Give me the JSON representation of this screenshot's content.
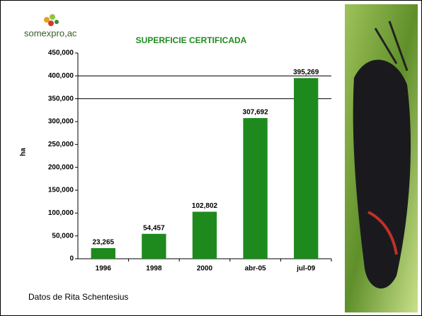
{
  "logo": "somexpro,ac",
  "footer": "Datos de Rita Schentesius",
  "chart_data": {
    "type": "bar",
    "title": "SUPERFICIE CERTIFICADA",
    "y_label": "ha",
    "categories": [
      "1996",
      "1998",
      "2000",
      "abr-05",
      "jul-09"
    ],
    "values": [
      23265,
      54457,
      102802,
      307692,
      395269
    ],
    "value_labels": [
      "23,265",
      "54,457",
      "102,802",
      "307,692",
      "395,269"
    ],
    "color": "#1e8a1e",
    "ylim": [
      0,
      450000
    ],
    "yticks": [
      0,
      {
        "value": 50000,
        "label": "50,000"
      },
      {
        "value": 100000,
        "label": "100,000"
      },
      {
        "value": 150000,
        "label": "150,000"
      },
      {
        "value": 200000,
        "label": "200,000"
      },
      {
        "value": 250000,
        "label": "250,000"
      },
      {
        "value": 300000,
        "label": "300,000"
      },
      {
        "value": 350000,
        "label": "350,000"
      },
      {
        "value": 400000,
        "label": "400,000"
      },
      {
        "value": 450000,
        "label": "450,000"
      }
    ],
    "gridlines": [
      400000,
      350000
    ]
  }
}
